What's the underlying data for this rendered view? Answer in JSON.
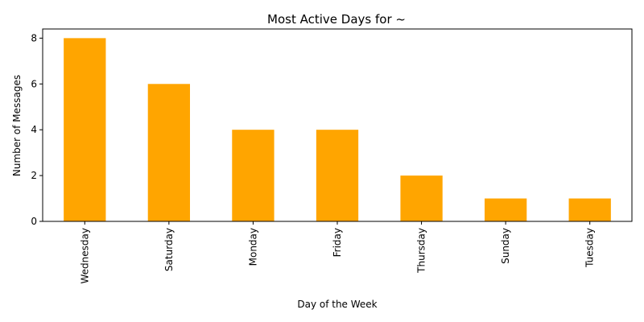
{
  "chart_data": {
    "type": "bar",
    "title": "Most Active Days for ~",
    "xlabel": "Day of the Week",
    "ylabel": "Number of Messages",
    "categories": [
      "Wednesday",
      "Saturday",
      "Monday",
      "Friday",
      "Thursday",
      "Sunday",
      "Tuesday"
    ],
    "values": [
      8,
      6,
      4,
      4,
      2,
      1,
      1
    ],
    "ylim": [
      0,
      8.4
    ],
    "yticks": [
      0,
      2,
      4,
      6,
      8
    ],
    "bar_color": "#FFA500",
    "grid": false,
    "legend": "none",
    "xtick_rotation": "vertical"
  }
}
